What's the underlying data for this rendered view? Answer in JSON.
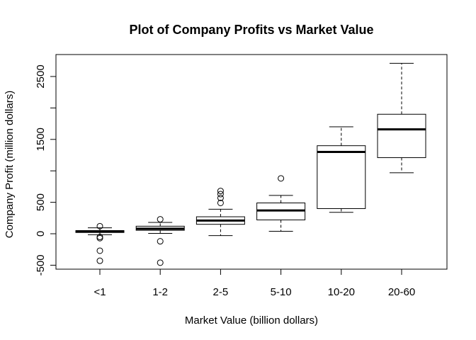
{
  "chart_data": {
    "type": "boxplot",
    "title": "Plot of Company Profits vs Market Value",
    "xlabel": "Market Value (billion dollars)",
    "ylabel": "Company Profit (million dollars)",
    "categories": [
      "<1",
      "1-2",
      "2-5",
      "5-10",
      "10-20",
      "20-60"
    ],
    "ylim": [
      -580,
      2860
    ],
    "yticks": [
      -500,
      0,
      500,
      1500,
      2500
    ],
    "ytick_labels": [
      "-500",
      "0",
      "500",
      "1500",
      "2500"
    ],
    "minor_yticks": [
      1000,
      2000
    ],
    "boxes": [
      {
        "category": "<1",
        "whisker_low": -15,
        "q1": 20,
        "median": 40,
        "q3": 50,
        "whisker_high": 95,
        "outliers": [
          120,
          -50,
          -70,
          -270,
          -430
        ]
      },
      {
        "category": "1-2",
        "whisker_low": 5,
        "q1": 55,
        "median": 80,
        "q3": 120,
        "whisker_high": 180,
        "outliers": [
          230,
          -120,
          -460
        ]
      },
      {
        "category": "2-5",
        "whisker_low": -30,
        "q1": 150,
        "median": 210,
        "q3": 270,
        "whisker_high": 390,
        "outliers": [
          490,
          570,
          630,
          680
        ]
      },
      {
        "category": "5-10",
        "whisker_low": 40,
        "q1": 220,
        "median": 370,
        "q3": 490,
        "whisker_high": 610,
        "outliers": [
          880
        ]
      },
      {
        "category": "10-20",
        "whisker_low": 340,
        "q1": 400,
        "median": 1300,
        "q3": 1400,
        "whisker_high": 1700,
        "outliers": []
      },
      {
        "category": "20-60",
        "whisker_low": 970,
        "q1": 1210,
        "median": 1660,
        "q3": 1900,
        "whisker_high": 2710,
        "outliers": []
      }
    ]
  }
}
